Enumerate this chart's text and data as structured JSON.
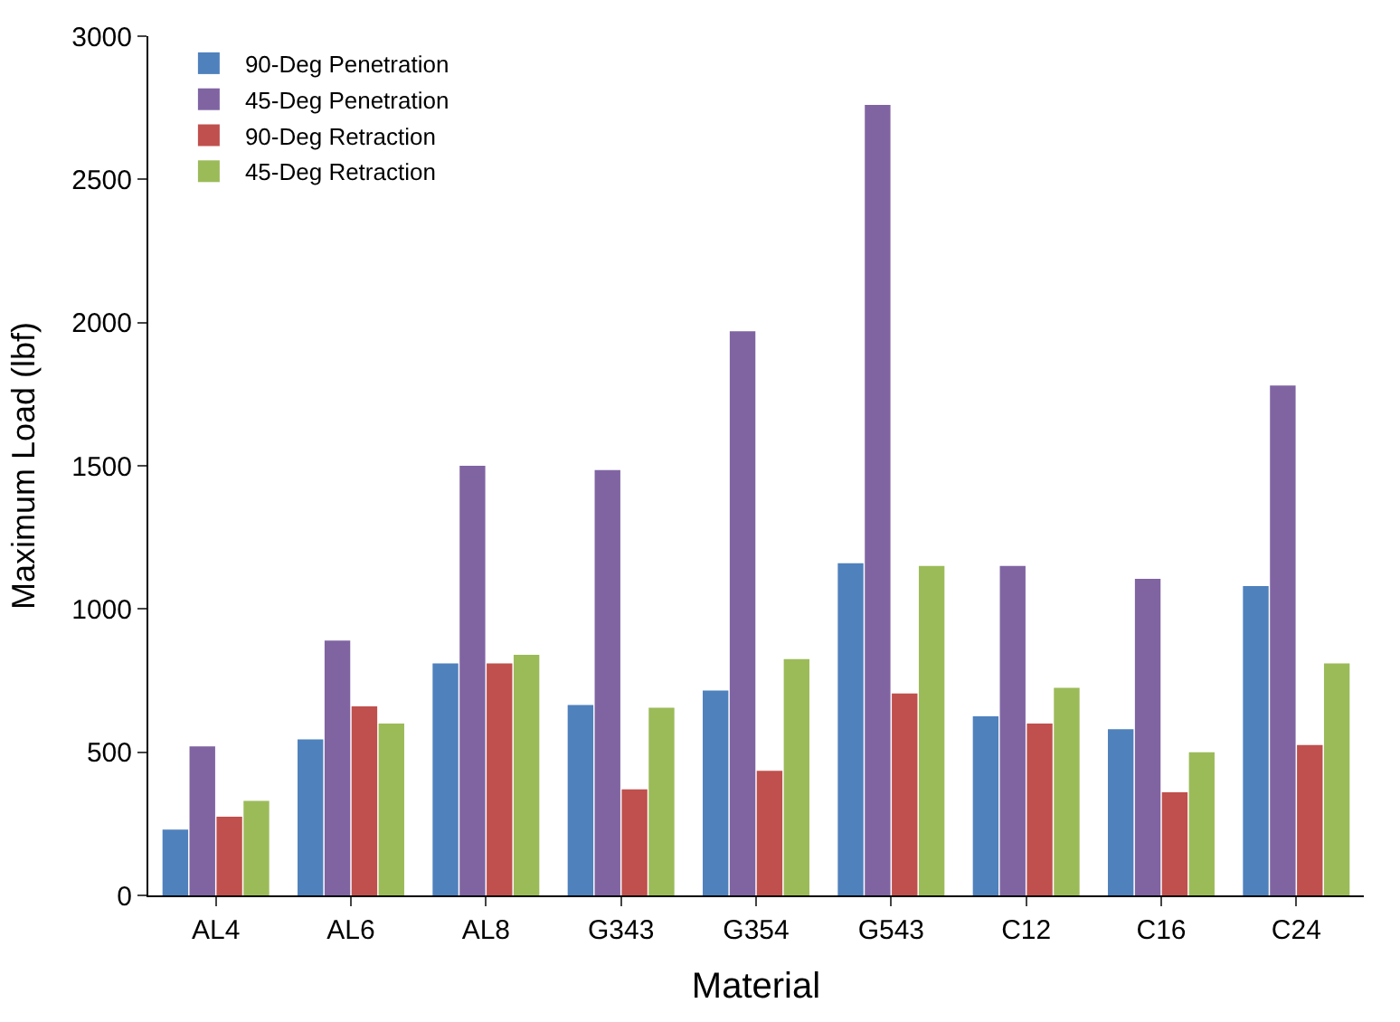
{
  "chart_data": {
    "type": "bar",
    "xlabel": "Material",
    "ylabel": "Maximum Load (lbf)",
    "categories": [
      "AL4",
      "AL6",
      "AL8",
      "G343",
      "G354",
      "G543",
      "C12",
      "C16",
      "C24"
    ],
    "series": [
      {
        "name": "90-Deg Penetration",
        "color": "#4f81bd",
        "values": [
          230,
          545,
          810,
          665,
          715,
          1160,
          625,
          580,
          1080
        ]
      },
      {
        "name": "45-Deg Penetration",
        "color": "#8064a2",
        "values": [
          520,
          890,
          1500,
          1485,
          1970,
          2760,
          1150,
          1105,
          1780
        ]
      },
      {
        "name": "90-Deg Retraction",
        "color": "#c0504d",
        "values": [
          275,
          660,
          810,
          370,
          435,
          705,
          600,
          360,
          525
        ]
      },
      {
        "name": "45-Deg Retraction",
        "color": "#9bbb59",
        "values": [
          330,
          600,
          840,
          655,
          825,
          1150,
          725,
          500,
          810
        ]
      }
    ],
    "ylim": [
      0,
      3000
    ],
    "yticks": [
      0,
      500,
      1000,
      1500,
      2000,
      2500,
      3000
    ],
    "legend": "top left"
  }
}
